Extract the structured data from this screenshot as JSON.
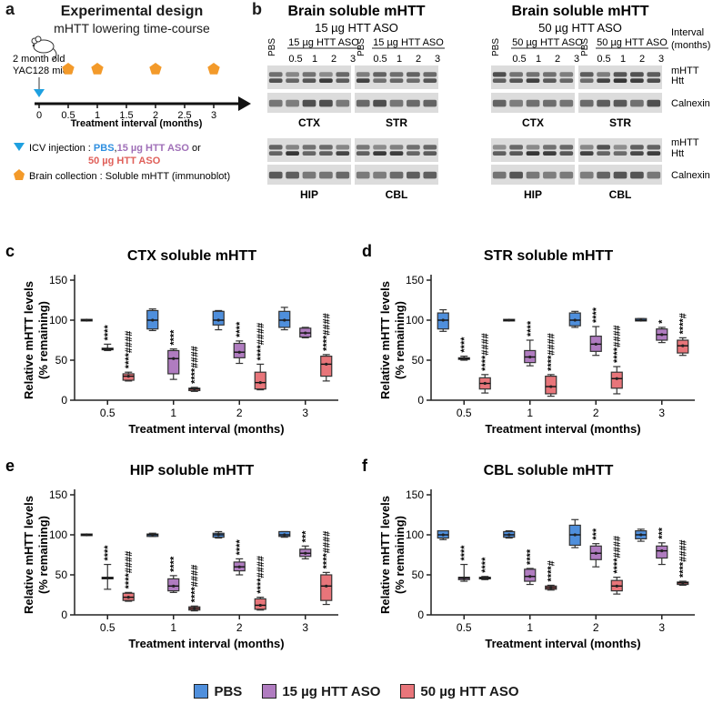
{
  "panel_a": {
    "letter": "a",
    "title": "Experimental design",
    "subtitle": "mHTT lowering time-course",
    "mouse_label": [
      "2 month old",
      "YAC128 mice"
    ],
    "ticks": [
      "0",
      "0.5",
      "1",
      "1.5",
      "2",
      "2.5",
      "3"
    ],
    "collection_timepoints": [
      0.5,
      1,
      2,
      3
    ],
    "axis_label": "Treatment interval (months)",
    "legend_icv_prefix": "ICV injection : ",
    "legend_icv_pbs": "PBS",
    "legend_icv_sep": ",",
    "legend_icv_15": "15 µg HTT ASO",
    "legend_icv_or": " or",
    "legend_icv_50": "50 µg HTT ASO",
    "legend_brain": "Brain collection : Soluble mHTT (immunoblot)",
    "colors": {
      "pbs": "#2f8fe0",
      "aso15": "#a070b8",
      "aso50": "#e0605a",
      "pentagon": "#f39a2a",
      "triangle": "#1ea0e0"
    }
  },
  "panel_b": {
    "letter": "b",
    "blocks": [
      {
        "title1": "Brain soluble mHTT",
        "title2": "15 µg HTT ASO",
        "group_label": "15 µg HTT ASO",
        "regions_top": [
          "CTX",
          "STR"
        ],
        "regions_bottom": [
          "HIP",
          "CBL"
        ]
      },
      {
        "title1": "Brain soluble mHTT",
        "title2": "50 µg HTT ASO",
        "group_label": "50 µg HTT ASO",
        "regions_top": [
          "CTX",
          "STR"
        ],
        "regions_bottom": [
          "HIP",
          "CBL"
        ]
      }
    ],
    "lane_pbs": "PBS",
    "lane_intervals": [
      "0.5",
      "1",
      "2",
      "3"
    ],
    "interval_label": [
      "Interval",
      "(months)"
    ],
    "band_labels_top": [
      "mHTT",
      "Htt"
    ],
    "band_label_calnexin": "Calnexin"
  },
  "legend": {
    "items": [
      {
        "label": "PBS",
        "color": "#4f8fdc"
      },
      {
        "label": "15 µg HTT ASO",
        "color": "#b07cc0"
      },
      {
        "label": "50 µg HTT ASO",
        "color": "#e8757a"
      }
    ]
  },
  "chart_data": [
    {
      "panel": "c",
      "type": "box",
      "title": "CTX soluble mHTT",
      "xlabel": "Treatment interval (months)",
      "ylabel": [
        "Relative mHTT levels",
        "(% remaining)"
      ],
      "categories": [
        "0.5",
        "1",
        "2",
        "3"
      ],
      "ylim": [
        0,
        150
      ],
      "yticks": [
        0,
        50,
        100,
        150
      ],
      "series": [
        {
          "name": "PBS",
          "boxes": [
            {
              "min": 99,
              "q1": 99,
              "med": 100,
              "q3": 101,
              "max": 101
            },
            {
              "min": 87,
              "q1": 89,
              "med": 100,
              "q3": 112,
              "max": 114
            },
            {
              "min": 88,
              "q1": 94,
              "med": 100,
              "q3": 111,
              "max": 112
            },
            {
              "min": 88,
              "q1": 91,
              "med": 100,
              "q3": 111,
              "max": 116
            }
          ]
        },
        {
          "name": "15 µg HTT ASO",
          "boxes": [
            {
              "min": 62,
              "q1": 63,
              "med": 64,
              "q3": 65,
              "max": 70
            },
            {
              "min": 26,
              "q1": 33,
              "med": 52,
              "q3": 62,
              "max": 64
            },
            {
              "min": 46,
              "q1": 53,
              "med": 60,
              "q3": 71,
              "max": 74
            },
            {
              "min": 78,
              "q1": 79,
              "med": 84,
              "q3": 90,
              "max": 91
            }
          ]
        },
        {
          "name": "50 µg HTT ASO",
          "boxes": [
            {
              "min": 24,
              "q1": 25,
              "med": 30,
              "q3": 33,
              "max": 35
            },
            {
              "min": 11,
              "q1": 12,
              "med": 14,
              "q3": 15,
              "max": 16
            },
            {
              "min": 13,
              "q1": 14,
              "med": 22,
              "q3": 35,
              "max": 45
            },
            {
              "min": 24,
              "q1": 30,
              "med": 45,
              "q3": 55,
              "max": 57
            }
          ]
        }
      ],
      "annotations": [
        [
          "",
          "****",
          "****####"
        ],
        [
          "",
          "****",
          "****####"
        ],
        [
          "",
          "****",
          "****####"
        ],
        [
          "",
          "",
          "****####"
        ]
      ]
    },
    {
      "panel": "d",
      "type": "box",
      "title": "STR soluble mHTT",
      "xlabel": "Treatment interval (months)",
      "ylabel": [
        "Relative mHTT levels",
        "(% remaining)"
      ],
      "categories": [
        "0.5",
        "1",
        "2",
        "3"
      ],
      "ylim": [
        0,
        150
      ],
      "yticks": [
        0,
        50,
        100,
        150
      ],
      "series": [
        {
          "name": "PBS",
          "boxes": [
            {
              "min": 86,
              "q1": 89,
              "med": 100,
              "q3": 109,
              "max": 113
            },
            {
              "min": 99,
              "q1": 99,
              "med": 100,
              "q3": 101,
              "max": 101
            },
            {
              "min": 91,
              "q1": 93,
              "med": 100,
              "q3": 109,
              "max": 111
            },
            {
              "min": 99,
              "q1": 99,
              "med": 100,
              "q3": 102,
              "max": 102
            }
          ]
        },
        {
          "name": "15 µg HTT ASO",
          "boxes": [
            {
              "min": 50,
              "q1": 51,
              "med": 52,
              "q3": 53,
              "max": 55
            },
            {
              "min": 43,
              "q1": 47,
              "med": 54,
              "q3": 62,
              "max": 75
            },
            {
              "min": 56,
              "q1": 61,
              "med": 70,
              "q3": 80,
              "max": 92
            },
            {
              "min": 72,
              "q1": 75,
              "med": 82,
              "q3": 89,
              "max": 91
            }
          ]
        },
        {
          "name": "50 µg HTT ASO",
          "boxes": [
            {
              "min": 9,
              "q1": 14,
              "med": 21,
              "q3": 28,
              "max": 32
            },
            {
              "min": 5,
              "q1": 8,
              "med": 17,
              "q3": 30,
              "max": 32
            },
            {
              "min": 8,
              "q1": 15,
              "med": 27,
              "q3": 35,
              "max": 42
            },
            {
              "min": 56,
              "q1": 59,
              "med": 68,
              "q3": 75,
              "max": 78
            }
          ]
        }
      ],
      "annotations": [
        [
          "",
          "****",
          "****####"
        ],
        [
          "",
          "****",
          "****####"
        ],
        [
          "",
          "****",
          "****####"
        ],
        [
          "",
          "*",
          "****#"
        ]
      ]
    },
    {
      "panel": "e",
      "type": "box",
      "title": "HIP soluble mHTT",
      "xlabel": "Treatment interval (months)",
      "ylabel": [
        "Relative mHTT levels",
        "(% remaining)"
      ],
      "categories": [
        "0.5",
        "1",
        "2",
        "3"
      ],
      "ylim": [
        0,
        150
      ],
      "yticks": [
        0,
        50,
        100,
        150
      ],
      "series": [
        {
          "name": "PBS",
          "boxes": [
            {
              "min": 99,
              "q1": 99,
              "med": 100,
              "q3": 101,
              "max": 101
            },
            {
              "min": 98,
              "q1": 98,
              "med": 100,
              "q3": 101,
              "max": 102
            },
            {
              "min": 96,
              "q1": 97,
              "med": 100,
              "q3": 102,
              "max": 104
            },
            {
              "min": 97,
              "q1": 98,
              "med": 100,
              "q3": 104,
              "max": 104
            }
          ]
        },
        {
          "name": "15 µg HTT ASO",
          "boxes": [
            {
              "min": 32,
              "q1": 45,
              "med": 46,
              "q3": 47,
              "max": 63
            },
            {
              "min": 28,
              "q1": 30,
              "med": 36,
              "q3": 45,
              "max": 49
            },
            {
              "min": 50,
              "q1": 55,
              "med": 60,
              "q3": 66,
              "max": 70
            },
            {
              "min": 70,
              "q1": 73,
              "med": 77,
              "q3": 82,
              "max": 86
            }
          ]
        },
        {
          "name": "50 µg HTT ASO",
          "boxes": [
            {
              "min": 17,
              "q1": 18,
              "med": 22,
              "q3": 27,
              "max": 28
            },
            {
              "min": 5,
              "q1": 6,
              "med": 8,
              "q3": 10,
              "max": 11
            },
            {
              "min": 6,
              "q1": 7,
              "med": 12,
              "q3": 20,
              "max": 22
            },
            {
              "min": 13,
              "q1": 18,
              "med": 36,
              "q3": 50,
              "max": 53
            }
          ]
        }
      ],
      "annotations": [
        [
          "",
          "****",
          "****####"
        ],
        [
          "",
          "****",
          "****####"
        ],
        [
          "",
          "****",
          "****####"
        ],
        [
          "",
          "***",
          "****####"
        ]
      ]
    },
    {
      "panel": "f",
      "type": "box",
      "title": "CBL soluble mHTT",
      "xlabel": "Treatment interval (months)",
      "ylabel": [
        "Relative mHTT levels",
        "(% remaining)"
      ],
      "categories": [
        "0.5",
        "1",
        "2",
        "3"
      ],
      "ylim": [
        0,
        150
      ],
      "yticks": [
        0,
        50,
        100,
        150
      ],
      "series": [
        {
          "name": "PBS",
          "boxes": [
            {
              "min": 94,
              "q1": 96,
              "med": 100,
              "q3": 105,
              "max": 105
            },
            {
              "min": 96,
              "q1": 97,
              "med": 100,
              "q3": 104,
              "max": 105
            },
            {
              "min": 84,
              "q1": 87,
              "med": 100,
              "q3": 112,
              "max": 119
            },
            {
              "min": 92,
              "q1": 95,
              "med": 100,
              "q3": 105,
              "max": 107
            }
          ]
        },
        {
          "name": "15 µg HTT ASO",
          "boxes": [
            {
              "min": 42,
              "q1": 44,
              "med": 46,
              "q3": 47,
              "max": 63
            },
            {
              "min": 38,
              "q1": 42,
              "med": 48,
              "q3": 57,
              "max": 58
            },
            {
              "min": 60,
              "q1": 69,
              "med": 77,
              "q3": 86,
              "max": 89
            },
            {
              "min": 63,
              "q1": 71,
              "med": 80,
              "q3": 86,
              "max": 90
            }
          ]
        },
        {
          "name": "50 µg HTT ASO",
          "boxes": [
            {
              "min": 44,
              "q1": 45,
              "med": 46,
              "q3": 47,
              "max": 48
            },
            {
              "min": 31,
              "q1": 32,
              "med": 34,
              "q3": 36,
              "max": 37
            },
            {
              "min": 26,
              "q1": 30,
              "med": 36,
              "q3": 43,
              "max": 47
            },
            {
              "min": 37,
              "q1": 38,
              "med": 40,
              "q3": 41,
              "max": 42
            }
          ]
        }
      ],
      "annotations": [
        [
          "",
          "****",
          "****"
        ],
        [
          "",
          "****",
          "****#"
        ],
        [
          "",
          "***",
          "****####"
        ],
        [
          "",
          "***",
          "****####"
        ]
      ]
    }
  ]
}
